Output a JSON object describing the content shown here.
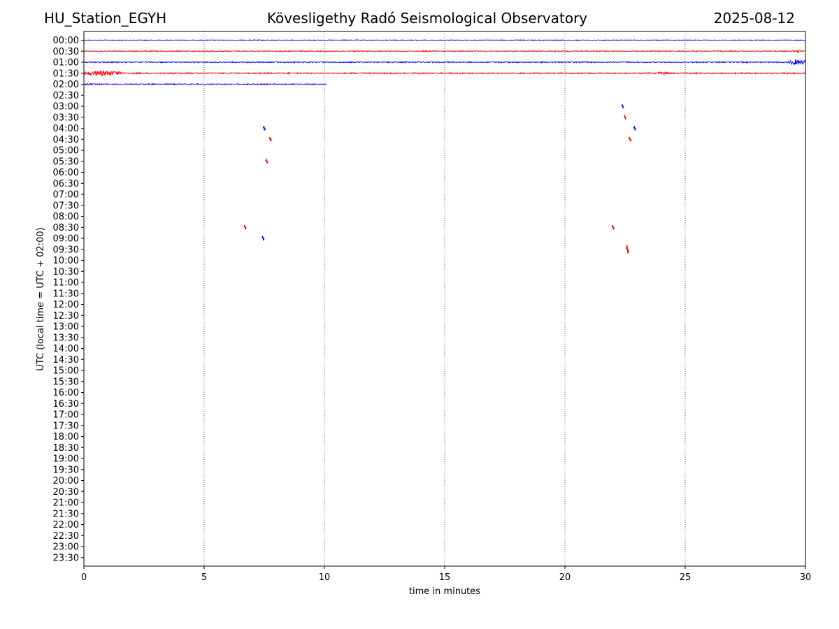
{
  "header": {
    "station": "HU_Station_EGYH",
    "observatory": "Kövesligethy Radó Seismological Observatory",
    "date": "2025-08-12"
  },
  "chart_data": {
    "type": "line",
    "title": "Kövesligethy Radó Seismological Observatory",
    "xlabel": "time in minutes",
    "ylabel": "UTC (local time = UTC + 02:00)",
    "xlim": [
      0,
      30
    ],
    "xticks": [
      "0",
      "5",
      "10",
      "15",
      "20",
      "25",
      "30"
    ],
    "xtick_values": [
      0,
      5,
      10,
      15,
      20,
      25,
      30
    ],
    "grid": "vertical dotted",
    "row_labels": [
      "00:00",
      "00:30",
      "01:00",
      "01:30",
      "02:00",
      "02:30",
      "03:00",
      "03:30",
      "04:00",
      "04:30",
      "05:00",
      "05:30",
      "06:00",
      "06:30",
      "07:00",
      "07:30",
      "08:00",
      "08:30",
      "09:00",
      "09:30",
      "10:00",
      "10:30",
      "11:00",
      "11:30",
      "12:00",
      "12:30",
      "13:00",
      "13:30",
      "14:00",
      "14:30",
      "15:00",
      "15:30",
      "16:00",
      "16:30",
      "17:00",
      "17:30",
      "18:00",
      "18:30",
      "19:00",
      "19:30",
      "20:00",
      "20:30",
      "21:00",
      "21:30",
      "22:00",
      "22:30",
      "23:00",
      "23:30"
    ],
    "colors": [
      "#0000ff",
      "#ff0000"
    ],
    "traces": [
      {
        "row": 0,
        "start": 0,
        "end": 30,
        "amp": 0.6,
        "bursts": []
      },
      {
        "row": 1,
        "start": 0,
        "end": 30,
        "amp": 0.7,
        "bursts": [
          {
            "at": 29.6,
            "len": 0.3,
            "amp": 2
          }
        ]
      },
      {
        "row": 2,
        "start": 0,
        "end": 30,
        "amp": 0.8,
        "bursts": [
          {
            "at": 29.3,
            "len": 0.7,
            "amp": 4
          }
        ]
      },
      {
        "row": 3,
        "start": 0,
        "end": 30,
        "amp": 0.9,
        "bursts": [
          {
            "at": 0,
            "len": 1.6,
            "amp": 4
          },
          {
            "at": 23.8,
            "len": 0.6,
            "amp": 2
          }
        ]
      },
      {
        "row": 4,
        "start": 0,
        "end": 10.1,
        "amp": 0.8,
        "bursts": [
          {
            "at": 0,
            "len": 0.4,
            "amp": 1.5
          }
        ]
      }
    ],
    "blips": [
      {
        "row": 6,
        "x": 22.4,
        "size": 2
      },
      {
        "row": 7,
        "x": 22.5,
        "size": 2
      },
      {
        "row": 8,
        "x": 7.5,
        "size": 3
      },
      {
        "row": 8,
        "x": 22.9,
        "size": 3
      },
      {
        "row": 9,
        "x": 7.75,
        "size": 3
      },
      {
        "row": 9,
        "x": 22.7,
        "size": 3
      },
      {
        "row": 11,
        "x": 7.6,
        "size": 3
      },
      {
        "row": 17,
        "x": 6.7,
        "size": 3
      },
      {
        "row": 17,
        "x": 22.0,
        "size": 3
      },
      {
        "row": 18,
        "x": 7.45,
        "size": 3
      },
      {
        "row": 19,
        "x": 22.6,
        "size": 6
      }
    ]
  }
}
